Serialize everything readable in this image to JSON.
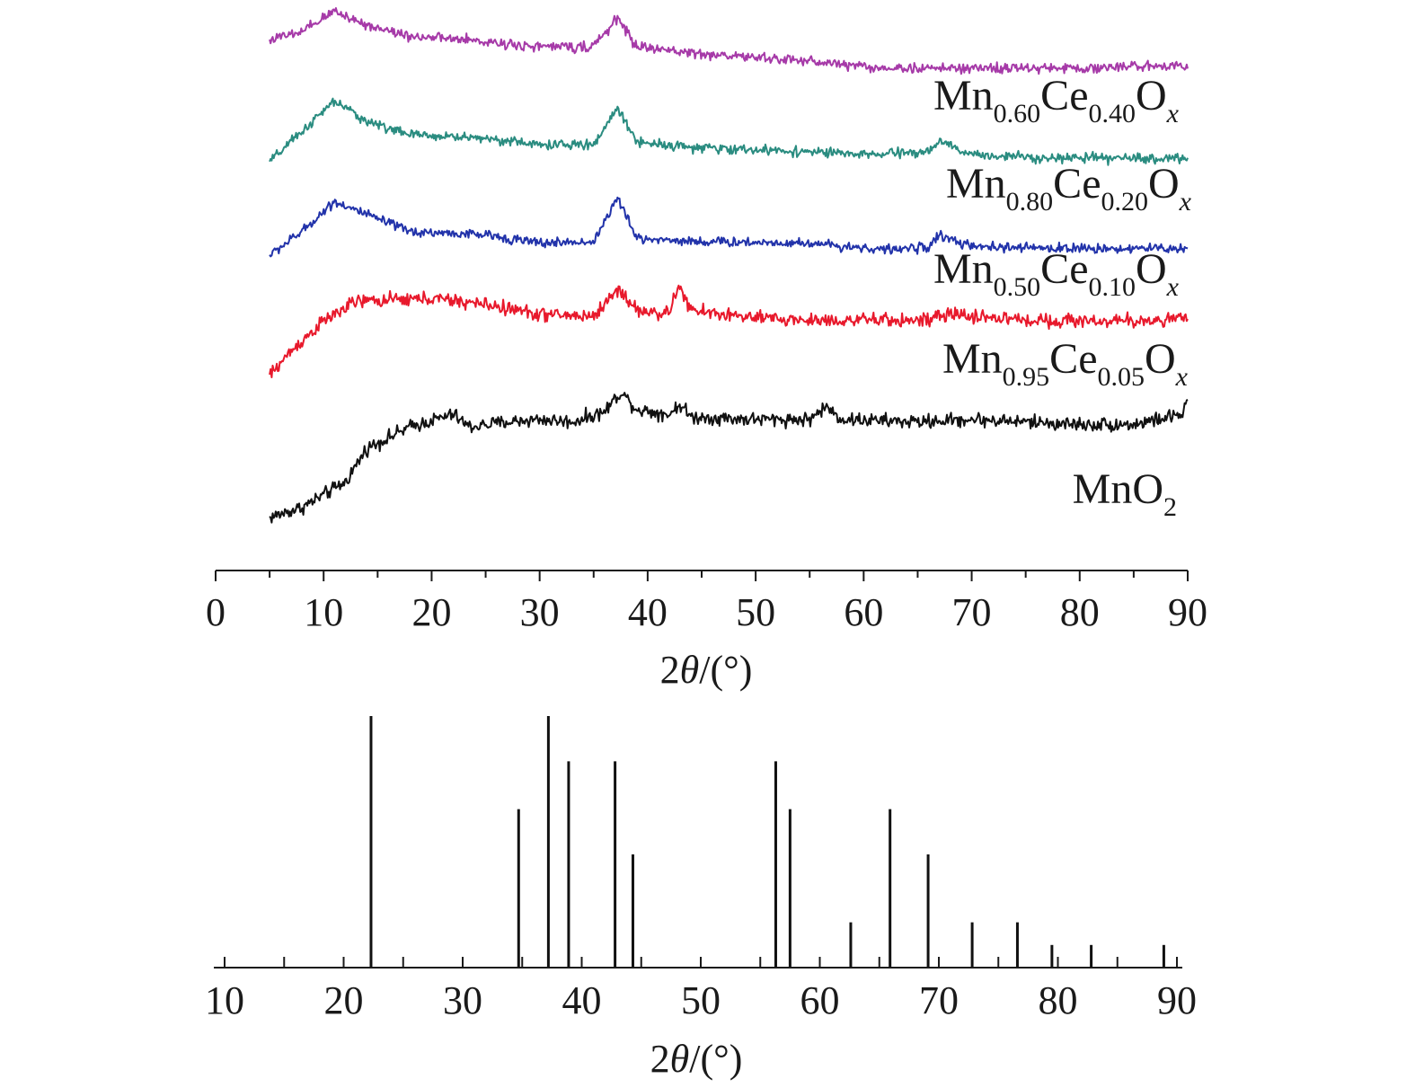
{
  "chart_data": [
    {
      "type": "line",
      "title": "",
      "xlabel": {
        "prefix": "2",
        "symbol": "θ",
        "suffix": "/(°)"
      },
      "ylabel": "",
      "xlim": [
        0,
        90
      ],
      "xticks": [
        "0",
        "10",
        "20",
        "30",
        "40",
        "50",
        "60",
        "70",
        "80",
        "90"
      ],
      "x_range": [
        5,
        90
      ],
      "grid": false,
      "legend": "none",
      "series": [
        {
          "name": "MnO2",
          "label": {
            "parts": [
              {
                "t": "MnO"
              },
              {
                "t": "2",
                "sub": true
              }
            ]
          },
          "color": "#111111",
          "amp": 0.055,
          "profile": [
            [
              5,
              0.0
            ],
            [
              8,
              0.08
            ],
            [
              12,
              0.28
            ],
            [
              14,
              0.55
            ],
            [
              18,
              0.72
            ],
            [
              22,
              0.82
            ],
            [
              23.5,
              0.72
            ],
            [
              27,
              0.76
            ],
            [
              30,
              0.78
            ],
            [
              33,
              0.76
            ],
            [
              36,
              0.84
            ],
            [
              37.5,
              1.0
            ],
            [
              39,
              0.86
            ],
            [
              42,
              0.82
            ],
            [
              43,
              0.9
            ],
            [
              44,
              0.8
            ],
            [
              50,
              0.78
            ],
            [
              55,
              0.78
            ],
            [
              56.5,
              0.88
            ],
            [
              58,
              0.78
            ],
            [
              65,
              0.76
            ],
            [
              70,
              0.78
            ],
            [
              80,
              0.74
            ],
            [
              85,
              0.74
            ],
            [
              89.5,
              0.82
            ],
            [
              90,
              0.95
            ]
          ]
        },
        {
          "name": "Mn0.95Ce0.05Ox",
          "label": {
            "parts": [
              {
                "t": "Mn"
              },
              {
                "t": "0.95",
                "sub": true
              },
              {
                "t": "Ce"
              },
              {
                "t": "0.05",
                "sub": true
              },
              {
                "t": "O"
              },
              {
                "t": "x",
                "sub": true,
                "it": true
              }
            ]
          },
          "color": "#e8192c",
          "amp": 0.07,
          "profile": [
            [
              5,
              0.0
            ],
            [
              7,
              0.25
            ],
            [
              10,
              0.55
            ],
            [
              13,
              0.75
            ],
            [
              20,
              0.78
            ],
            [
              25,
              0.72
            ],
            [
              30,
              0.62
            ],
            [
              35,
              0.6
            ],
            [
              37.3,
              0.88
            ],
            [
              39,
              0.66
            ],
            [
              42,
              0.62
            ],
            [
              42.8,
              0.92
            ],
            [
              44,
              0.66
            ],
            [
              50,
              0.58
            ],
            [
              55,
              0.56
            ],
            [
              60,
              0.56
            ],
            [
              66,
              0.56
            ],
            [
              68,
              0.62
            ],
            [
              75,
              0.56
            ],
            [
              85,
              0.55
            ],
            [
              90,
              0.58
            ]
          ]
        },
        {
          "name": "Mn0.50Ce0.10Ox",
          "label": {
            "parts": [
              {
                "t": "Mn"
              },
              {
                "t": "0.50",
                "sub": true
              },
              {
                "t": "Ce"
              },
              {
                "t": "0.10",
                "sub": true
              },
              {
                "t": "O"
              },
              {
                "t": "x",
                "sub": true,
                "it": true
              }
            ]
          },
          "color": "#2233aa",
          "amp": 0.07,
          "profile": [
            [
              5,
              0.0
            ],
            [
              8,
              0.35
            ],
            [
              11,
              0.8
            ],
            [
              14,
              0.6
            ],
            [
              18,
              0.35
            ],
            [
              25,
              0.3
            ],
            [
              30,
              0.18
            ],
            [
              35,
              0.2
            ],
            [
              37.2,
              0.85
            ],
            [
              39,
              0.25
            ],
            [
              45,
              0.2
            ],
            [
              55,
              0.18
            ],
            [
              62,
              0.08
            ],
            [
              66,
              0.12
            ],
            [
              67,
              0.3
            ],
            [
              70,
              0.12
            ],
            [
              80,
              0.1
            ],
            [
              90,
              0.1
            ]
          ]
        },
        {
          "name": "Mn0.80Ce0.20Ox",
          "label": {
            "parts": [
              {
                "t": "Mn"
              },
              {
                "t": "0.80",
                "sub": true
              },
              {
                "t": "Ce"
              },
              {
                "t": "0.20",
                "sub": true
              },
              {
                "t": "O"
              },
              {
                "t": "x",
                "sub": true,
                "it": true
              }
            ]
          },
          "color": "#2a8c80",
          "amp": 0.07,
          "profile": [
            [
              5,
              0.0
            ],
            [
              8,
              0.45
            ],
            [
              11,
              0.9
            ],
            [
              14,
              0.6
            ],
            [
              18,
              0.4
            ],
            [
              25,
              0.35
            ],
            [
              30,
              0.25
            ],
            [
              35,
              0.25
            ],
            [
              37.2,
              0.8
            ],
            [
              39,
              0.3
            ],
            [
              45,
              0.2
            ],
            [
              55,
              0.15
            ],
            [
              60,
              0.1
            ],
            [
              66,
              0.15
            ],
            [
              67,
              0.3
            ],
            [
              70,
              0.1
            ],
            [
              80,
              0.05
            ],
            [
              90,
              0.05
            ]
          ]
        },
        {
          "name": "Mn0.60Ce0.40Ox",
          "label": {
            "parts": [
              {
                "t": "Mn"
              },
              {
                "t": "0.60",
                "sub": true
              },
              {
                "t": "Ce"
              },
              {
                "t": "0.40",
                "sub": true
              },
              {
                "t": "O"
              },
              {
                "t": "x",
                "sub": true,
                "it": true
              }
            ]
          },
          "color": "#a63aa8",
          "amp": 0.07,
          "profile": [
            [
              5,
              0.45
            ],
            [
              8,
              0.55
            ],
            [
              11,
              0.85
            ],
            [
              14,
              0.65
            ],
            [
              18,
              0.5
            ],
            [
              25,
              0.42
            ],
            [
              30,
              0.35
            ],
            [
              35,
              0.35
            ],
            [
              37.2,
              0.75
            ],
            [
              39,
              0.35
            ],
            [
              45,
              0.25
            ],
            [
              55,
              0.15
            ],
            [
              62,
              0.05
            ],
            [
              70,
              0.05
            ],
            [
              80,
              0.05
            ],
            [
              90,
              0.1
            ]
          ]
        }
      ]
    },
    {
      "type": "bar",
      "title": "",
      "xlabel": {
        "prefix": "2",
        "symbol": "θ",
        "suffix": "/(°)"
      },
      "ylabel": "",
      "xlim": [
        10,
        90
      ],
      "xticks": [
        "10",
        "20",
        "30",
        "40",
        "50",
        "60",
        "70",
        "80",
        "90"
      ],
      "grid": false,
      "legend": "none",
      "peaks": [
        {
          "x": 22.3,
          "intensity": 100
        },
        {
          "x": 34.7,
          "intensity": 63
        },
        {
          "x": 37.2,
          "intensity": 100
        },
        {
          "x": 38.9,
          "intensity": 82
        },
        {
          "x": 42.8,
          "intensity": 82
        },
        {
          "x": 44.3,
          "intensity": 45
        },
        {
          "x": 56.3,
          "intensity": 82
        },
        {
          "x": 57.5,
          "intensity": 63
        },
        {
          "x": 62.6,
          "intensity": 18
        },
        {
          "x": 65.9,
          "intensity": 63
        },
        {
          "x": 69.1,
          "intensity": 45
        },
        {
          "x": 72.8,
          "intensity": 18
        },
        {
          "x": 76.6,
          "intensity": 18
        },
        {
          "x": 79.5,
          "intensity": 9
        },
        {
          "x": 82.8,
          "intensity": 9
        },
        {
          "x": 88.9,
          "intensity": 9
        }
      ]
    }
  ]
}
